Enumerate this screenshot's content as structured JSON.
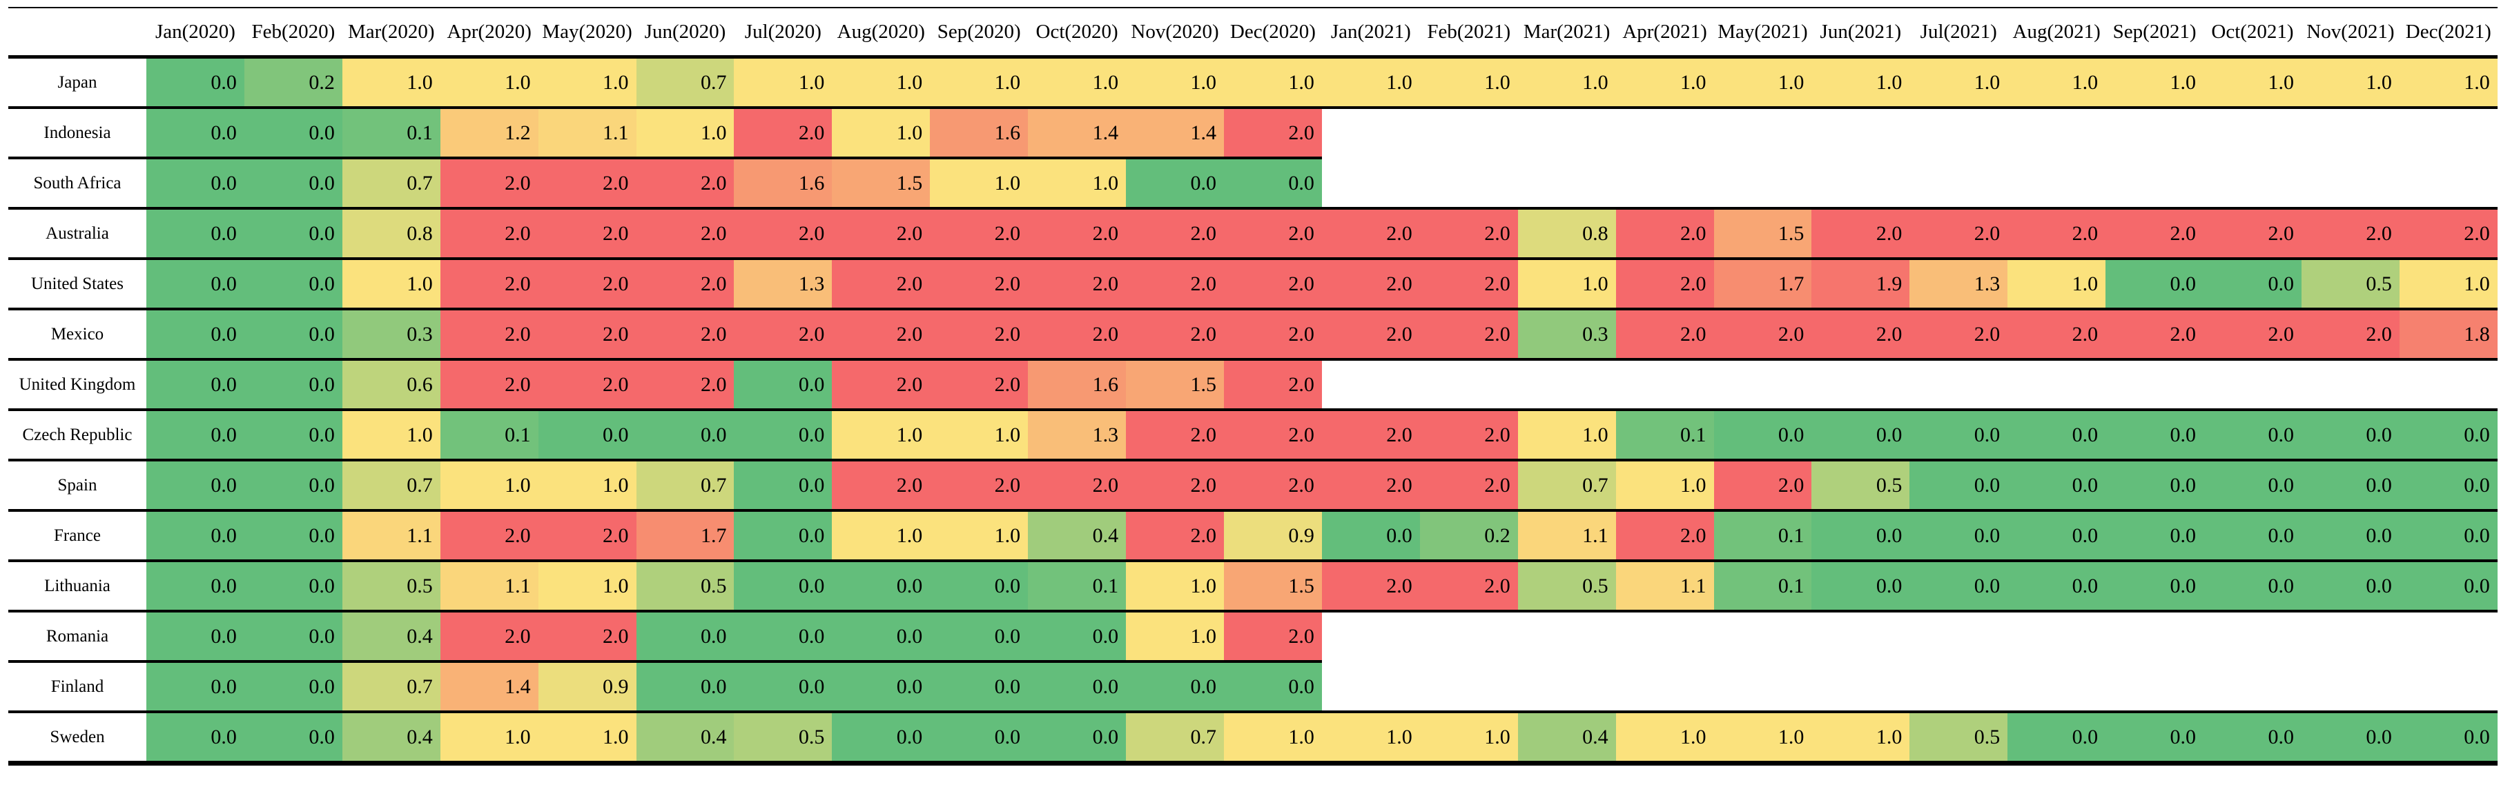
{
  "chart_data": {
    "type": "heatmap",
    "title": "",
    "legend": "none",
    "value_format": "{:.1f}",
    "value_range": [
      0,
      2
    ],
    "blank_color": "#FFFFFF",
    "color_scale": {
      "min_value": 0,
      "mid_value": 1,
      "max_value": 2,
      "min_color": "#63BE7B",
      "mid_color": "#FBE27D",
      "max_color": "#F5696B"
    },
    "columns": [
      "Jan(2020)",
      "Feb(2020)",
      "Mar(2020)",
      "Apr(2020)",
      "May(2020)",
      "Jun(2020)",
      "Jul(2020)",
      "Aug(2020)",
      "Sep(2020)",
      "Oct(2020)",
      "Nov(2020)",
      "Dec(2020)",
      "Jan(2021)",
      "Feb(2021)",
      "Mar(2021)",
      "Apr(2021)",
      "May(2021)",
      "Jun(2021)",
      "Jul(2021)",
      "Aug(2021)",
      "Sep(2021)",
      "Oct(2021)",
      "Nov(2021)",
      "Dec(2021)"
    ],
    "rows": [
      {
        "label": "Japan",
        "values": [
          0.0,
          0.2,
          1.0,
          1.0,
          1.0,
          0.7,
          1.0,
          1.0,
          1.0,
          1.0,
          1.0,
          1.0,
          1.0,
          1.0,
          1.0,
          1.0,
          1.0,
          1.0,
          1.0,
          1.0,
          1.0,
          1.0,
          1.0,
          1.0
        ]
      },
      {
        "label": "Indonesia",
        "values": [
          0.0,
          0.0,
          0.1,
          1.2,
          1.1,
          1.0,
          2.0,
          1.0,
          1.6,
          1.4,
          1.4,
          2.0
        ]
      },
      {
        "label": "South Africa",
        "values": [
          0.0,
          0.0,
          0.7,
          2.0,
          2.0,
          2.0,
          1.6,
          1.5,
          1.0,
          1.0,
          0.0,
          0.0
        ]
      },
      {
        "label": "Australia",
        "values": [
          0.0,
          0.0,
          0.8,
          2.0,
          2.0,
          2.0,
          2.0,
          2.0,
          2.0,
          2.0,
          2.0,
          2.0,
          2.0,
          2.0,
          0.8,
          2.0,
          1.5,
          2.0,
          2.0,
          2.0,
          2.0,
          2.0,
          2.0,
          2.0
        ]
      },
      {
        "label": "United States",
        "values": [
          0.0,
          0.0,
          1.0,
          2.0,
          2.0,
          2.0,
          1.3,
          2.0,
          2.0,
          2.0,
          2.0,
          2.0,
          2.0,
          2.0,
          1.0,
          2.0,
          1.7,
          1.9,
          1.3,
          1.0,
          0.0,
          0.0,
          0.5,
          1.0
        ]
      },
      {
        "label": "Mexico",
        "values": [
          0.0,
          0.0,
          0.3,
          2.0,
          2.0,
          2.0,
          2.0,
          2.0,
          2.0,
          2.0,
          2.0,
          2.0,
          2.0,
          2.0,
          0.3,
          2.0,
          2.0,
          2.0,
          2.0,
          2.0,
          2.0,
          2.0,
          2.0,
          1.8
        ]
      },
      {
        "label": "United Kingdom",
        "values": [
          0.0,
          0.0,
          0.6,
          2.0,
          2.0,
          2.0,
          0.0,
          2.0,
          2.0,
          1.6,
          1.5,
          2.0
        ]
      },
      {
        "label": "Czech Republic",
        "values": [
          0.0,
          0.0,
          1.0,
          0.1,
          0.0,
          0.0,
          0.0,
          1.0,
          1.0,
          1.3,
          2.0,
          2.0,
          2.0,
          2.0,
          1.0,
          0.1,
          0.0,
          0.0,
          0.0,
          0.0,
          0.0,
          0.0,
          0.0,
          0.0
        ]
      },
      {
        "label": "Spain",
        "values": [
          0.0,
          0.0,
          0.7,
          1.0,
          1.0,
          0.7,
          0.0,
          2.0,
          2.0,
          2.0,
          2.0,
          2.0,
          2.0,
          2.0,
          0.7,
          1.0,
          2.0,
          0.5,
          0.0,
          0.0,
          0.0,
          0.0,
          0.0,
          0.0
        ]
      },
      {
        "label": "France",
        "values": [
          0.0,
          0.0,
          1.1,
          2.0,
          2.0,
          1.7,
          0.0,
          1.0,
          1.0,
          0.4,
          2.0,
          0.9,
          0.0,
          0.2,
          1.1,
          2.0,
          0.1,
          0.0,
          0.0,
          0.0,
          0.0,
          0.0,
          0.0,
          0.0
        ]
      },
      {
        "label": "Lithuania",
        "values": [
          0.0,
          0.0,
          0.5,
          1.1,
          1.0,
          0.5,
          0.0,
          0.0,
          0.0,
          0.1,
          1.0,
          1.5,
          2.0,
          2.0,
          0.5,
          1.1,
          0.1,
          0.0,
          0.0,
          0.0,
          0.0,
          0.0,
          0.0,
          0.0
        ]
      },
      {
        "label": "Romania",
        "values": [
          0.0,
          0.0,
          0.4,
          2.0,
          2.0,
          0.0,
          0.0,
          0.0,
          0.0,
          0.0,
          1.0,
          2.0
        ]
      },
      {
        "label": "Finland",
        "values": [
          0.0,
          0.0,
          0.7,
          1.4,
          0.9,
          0.0,
          0.0,
          0.0,
          0.0,
          0.0,
          0.0,
          0.0
        ]
      },
      {
        "label": "Sweden",
        "values": [
          0.0,
          0.0,
          0.4,
          1.0,
          1.0,
          0.4,
          0.5,
          0.0,
          0.0,
          0.0,
          0.7,
          1.0,
          1.0,
          1.0,
          0.4,
          1.0,
          1.0,
          1.0,
          0.5,
          0.0,
          0.0,
          0.0,
          0.0,
          0.0
        ]
      }
    ]
  }
}
